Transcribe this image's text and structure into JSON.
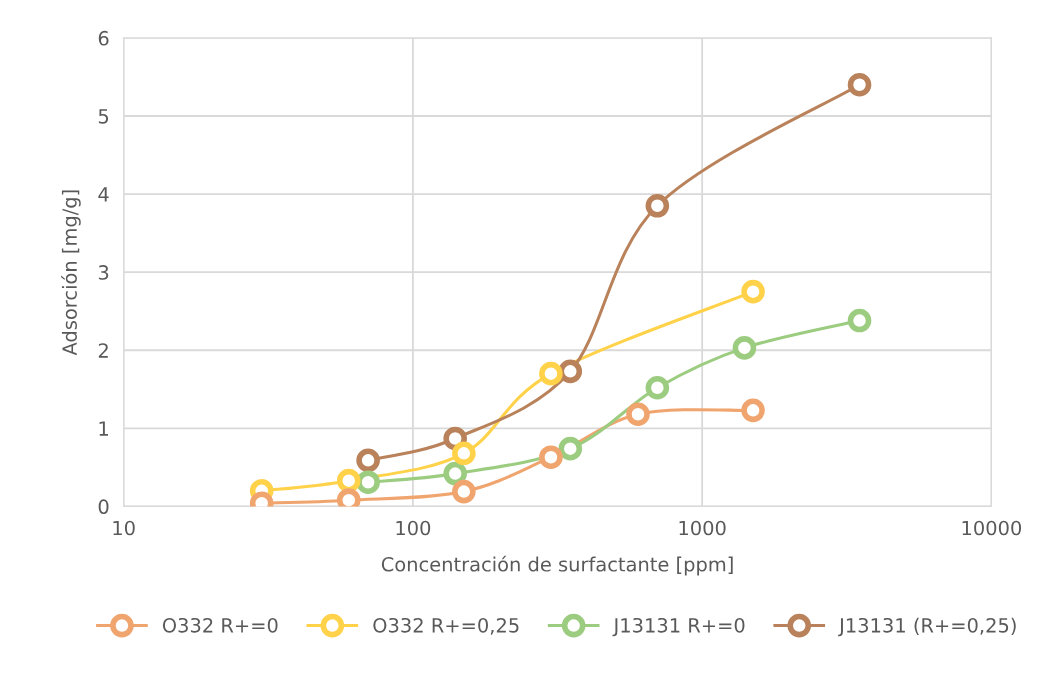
{
  "chart_data": {
    "type": "line",
    "xlabel": "Concentración de surfactante [ppm]",
    "ylabel": "Adsorción [mg/g]",
    "log": "x",
    "xlim": [
      10,
      10000
    ],
    "xticks": [
      10,
      100,
      1000,
      10000
    ],
    "ylim": [
      0,
      6
    ],
    "yticks": [
      0,
      1,
      2,
      3,
      4,
      5,
      6
    ],
    "grid": true,
    "legend": "bottom",
    "marker": "circle",
    "line_style": "solid",
    "series": [
      {
        "name": "O332 R+=0",
        "color": "#f0a46e",
        "x": [
          30,
          60,
          150,
          300,
          600,
          1500
        ],
        "values": [
          0.04,
          0.08,
          0.19,
          0.63,
          1.18,
          1.23
        ]
      },
      {
        "name": "O332 R+=0,25",
        "color": "#ffd24a",
        "x": [
          30,
          60,
          150,
          300,
          1500
        ],
        "values": [
          0.2,
          0.33,
          0.68,
          1.7,
          2.75
        ]
      },
      {
        "name": "J13131 R+=0",
        "color": "#9ccc80",
        "x": [
          70,
          140,
          350,
          700,
          1400,
          3500
        ],
        "values": [
          0.31,
          0.42,
          0.74,
          1.52,
          2.03,
          2.38
        ]
      },
      {
        "name": "J13131 (R+=0,25)",
        "color": "#b9825a",
        "x": [
          70,
          140,
          350,
          700,
          3500
        ],
        "values": [
          0.59,
          0.87,
          1.73,
          3.85,
          5.4
        ]
      }
    ]
  }
}
